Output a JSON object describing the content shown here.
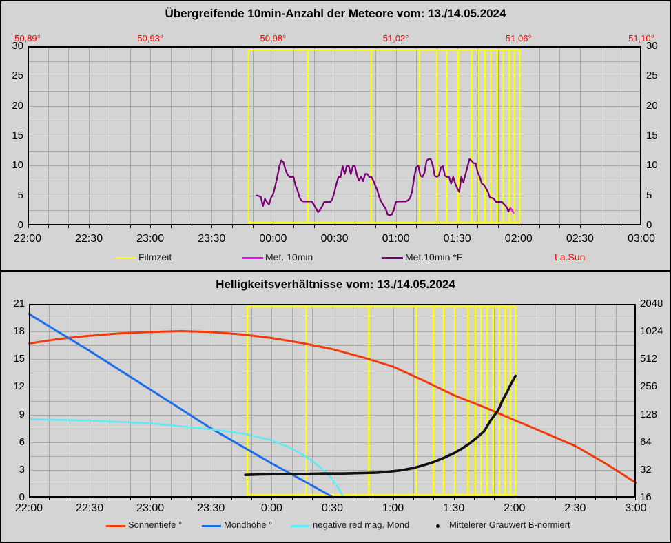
{
  "window": {
    "background": "#d4d4d4",
    "grid_color": "#a8a8a8",
    "frame_color": "#000000"
  },
  "panel1": {
    "title": "Übergreifende 10min-Anzahl der Meteore vom: 13./14.05.2024",
    "sol_long_labels": [
      "50,89°",
      "50,93°",
      "50,98°",
      "51,02°",
      "51,06°",
      "51,10°"
    ],
    "x_tick_labels": [
      "22:00",
      "22:30",
      "23:00",
      "23:30",
      "00:00",
      "00:30",
      "01:00",
      "01:30",
      "02:00",
      "02:30",
      "03:00"
    ],
    "y_tick_labels": [
      "0",
      "5",
      "10",
      "15",
      "20",
      "25",
      "30"
    ],
    "legend": [
      {
        "label": "Filmzeit",
        "color": "#ffff00",
        "marker": "line"
      },
      {
        "label": "Met. 10min",
        "color": "#ff00ff",
        "marker": "line"
      },
      {
        "label": "Met.10min *F",
        "color": "#7a0076",
        "marker": "line"
      },
      {
        "label": "La.Sun",
        "color": "#ff0000",
        "marker": "none"
      }
    ]
  },
  "panel2": {
    "title": "Helligkeitsverhältnisse vom: 13./14.05.2024",
    "x_tick_labels": [
      "22:00",
      "22:30",
      "23:00",
      "23:30",
      "0:00",
      "0:30",
      "1:00",
      "1:30",
      "2:00",
      "2:30",
      "3:00"
    ],
    "y_left_labels": [
      "0",
      "3",
      "6",
      "9",
      "12",
      "15",
      "18",
      "21"
    ],
    "y_right_labels": [
      "16",
      "32",
      "64",
      "128",
      "256",
      "512",
      "1024",
      "2048"
    ],
    "legend": [
      {
        "label": "Sonnentiefe °",
        "color": "#ee3c0c",
        "marker": "line"
      },
      {
        "label": "Mondhöhe °",
        "color": "#1b6deb",
        "marker": "line"
      },
      {
        "label": "negative red mag. Mond",
        "color": "#5fe9f2",
        "marker": "line"
      },
      {
        "label": "Mittelerer Grauwert B-normiert",
        "color": "#111111",
        "marker": "dot"
      }
    ]
  },
  "chart_data": [
    {
      "type": "line",
      "title": "Übergreifende 10min-Anzahl der Meteore vom: 13./14.05.2024",
      "x_axis": {
        "unit": "minutes after 22:00",
        "range": [
          0,
          300
        ],
        "label_interval_min": 30,
        "grid_interval_min": 10
      },
      "y_axis": {
        "range": [
          0,
          30
        ],
        "label_interval": 5,
        "grid_interval": 2.5
      },
      "top_axis": {
        "name": "La.Sun solar longitude",
        "color": "#ff0000",
        "labels": [
          "50,89°",
          "50,93°",
          "50,98°",
          "51,02°",
          "51,06°",
          "51,10°"
        ],
        "positions_min": [
          0,
          60,
          120,
          180,
          240,
          300
        ]
      },
      "film_band": {
        "name": "Filmzeit",
        "color": "#ffff00",
        "boundaries_min": [
          108,
          137,
          168,
          191.5,
          200,
          205,
          210.5,
          217,
          220.5,
          223.5,
          226.5,
          229.5,
          232.5,
          235.5,
          238,
          240.5
        ],
        "y_span": [
          0.45,
          29.4
        ]
      },
      "series": [
        {
          "name": "Met.10min *F",
          "color": "#7a0076",
          "width": 2.3,
          "points": [
            [
              112,
              5
            ],
            [
              113,
              4.9
            ],
            [
              114,
              4.8
            ],
            [
              115,
              3.2
            ],
            [
              116,
              4.4
            ],
            [
              117,
              3.9
            ],
            [
              118,
              3.5
            ],
            [
              119,
              4.6
            ],
            [
              120,
              5.2
            ],
            [
              121,
              6.5
            ],
            [
              122,
              8
            ],
            [
              123,
              9.8
            ],
            [
              124,
              10.9
            ],
            [
              125,
              10.6
            ],
            [
              126,
              9.4
            ],
            [
              127,
              8.5
            ],
            [
              128,
              8.1
            ],
            [
              130,
              8.1
            ],
            [
              131,
              6.6
            ],
            [
              132,
              5.8
            ],
            [
              133,
              4.6
            ],
            [
              134,
              4.1
            ],
            [
              135,
              4
            ],
            [
              139,
              4
            ],
            [
              140,
              3.4
            ],
            [
              141,
              2.8
            ],
            [
              142,
              2.2
            ],
            [
              143,
              2.6
            ],
            [
              144,
              3.2
            ],
            [
              145,
              3.9
            ],
            [
              148,
              3.9
            ],
            [
              149,
              4.4
            ],
            [
              150,
              5.6
            ],
            [
              151,
              7
            ],
            [
              152,
              8.1
            ],
            [
              153,
              8.1
            ],
            [
              154,
              9.9
            ],
            [
              155,
              8.6
            ],
            [
              156,
              9.9
            ],
            [
              157,
              9.9
            ],
            [
              158,
              8.6
            ],
            [
              159,
              9.9
            ],
            [
              160,
              9.9
            ],
            [
              161,
              8.3
            ],
            [
              162,
              7.5
            ],
            [
              163,
              8.1
            ],
            [
              164,
              7.4
            ],
            [
              165,
              8.6
            ],
            [
              166,
              8.6
            ],
            [
              167,
              8.1
            ],
            [
              168,
              8.1
            ],
            [
              169,
              7.5
            ],
            [
              170,
              6.6
            ],
            [
              171,
              5.8
            ],
            [
              172,
              4.6
            ],
            [
              173,
              3.9
            ],
            [
              174,
              3.3
            ],
            [
              175,
              2.8
            ],
            [
              176,
              1.8
            ],
            [
              177,
              1.7
            ],
            [
              178,
              1.8
            ],
            [
              179,
              2.6
            ],
            [
              180,
              3.9
            ],
            [
              181,
              4
            ],
            [
              185,
              4
            ],
            [
              186,
              4.2
            ],
            [
              187,
              4.6
            ],
            [
              188,
              5.8
            ],
            [
              189,
              8.1
            ],
            [
              190,
              9.7
            ],
            [
              191,
              10
            ],
            [
              192,
              8.3
            ],
            [
              193,
              8.1
            ],
            [
              194,
              8.8
            ],
            [
              195,
              10.8
            ],
            [
              196,
              11.1
            ],
            [
              197,
              11.1
            ],
            [
              198,
              10.1
            ],
            [
              199,
              8.3
            ],
            [
              200,
              8.1
            ],
            [
              201,
              8.3
            ],
            [
              202,
              9.7
            ],
            [
              203,
              9.9
            ],
            [
              204,
              8.3
            ],
            [
              205,
              8.1
            ],
            [
              206,
              8.1
            ],
            [
              207,
              7
            ],
            [
              208,
              8.1
            ],
            [
              209,
              7
            ],
            [
              210,
              6.2
            ],
            [
              211,
              5.6
            ],
            [
              212,
              8.1
            ],
            [
              213,
              7.2
            ],
            [
              214,
              8.5
            ],
            [
              215,
              9.8
            ],
            [
              216,
              11.1
            ],
            [
              217,
              10.8
            ],
            [
              218,
              10.4
            ],
            [
              219,
              10.4
            ],
            [
              220,
              8.9
            ],
            [
              221,
              8.1
            ],
            [
              222,
              7
            ],
            [
              223,
              6.8
            ],
            [
              224,
              6.2
            ],
            [
              225,
              5.6
            ],
            [
              226,
              4.6
            ],
            [
              227,
              4.6
            ],
            [
              228,
              4.4
            ],
            [
              229,
              3.9
            ],
            [
              231,
              3.9
            ],
            [
              232,
              3.9
            ],
            [
              233,
              3.5
            ],
            [
              234,
              3.1
            ],
            [
              235,
              2.3
            ],
            [
              236,
              2.9
            ]
          ]
        },
        {
          "name": "Met. 10min",
          "color": "#ff00ff",
          "width": 2.3,
          "points": [
            [
              236,
              2.9
            ],
            [
              237.5,
              2.1
            ]
          ]
        }
      ]
    },
    {
      "type": "line",
      "title": "Helligkeitsverhältnisse vom: 13./14.05.2024",
      "x_axis": {
        "unit": "minutes after 22:00",
        "range": [
          0,
          300
        ],
        "label_interval_min": 30,
        "grid_interval_min": 10
      },
      "y_axis_left": {
        "range": [
          0,
          21
        ],
        "label_interval": 3,
        "grid_interval": 1.5
      },
      "y_axis_right": {
        "scale": "log2",
        "labels": [
          16,
          32,
          64,
          128,
          256,
          512,
          1024,
          2048
        ]
      },
      "film_band": {
        "name": "Filmzeit",
        "color": "#ffff00",
        "boundaries_min": [
          108,
          137,
          168,
          191.5,
          200,
          205,
          210.5,
          217,
          220.5,
          223.5,
          226.5,
          229.5,
          232.5,
          235.5,
          238,
          240.5
        ],
        "y_span": [
          0.3,
          20.7
        ]
      },
      "series": [
        {
          "name": "Sonnentiefe °",
          "color": "#ee3c0c",
          "width": 3,
          "points": [
            [
              0,
              16.7
            ],
            [
              15,
              17.2
            ],
            [
              30,
              17.55
            ],
            [
              45,
              17.8
            ],
            [
              60,
              17.95
            ],
            [
              75,
              18.05
            ],
            [
              90,
              17.95
            ],
            [
              105,
              17.7
            ],
            [
              120,
              17.3
            ],
            [
              135,
              16.75
            ],
            [
              150,
              16.1
            ],
            [
              165,
              15.2
            ],
            [
              180,
              14.2
            ],
            [
              195,
              12.7
            ],
            [
              210,
              11.1
            ],
            [
              225,
              9.8
            ],
            [
              240,
              8.4
            ],
            [
              255,
              7.0
            ],
            [
              270,
              5.6
            ],
            [
              285,
              3.7
            ],
            [
              300,
              1.6
            ]
          ]
        },
        {
          "name": "Mondhöhe °",
          "color": "#1b6deb",
          "width": 3,
          "points": [
            [
              0,
              19.9
            ],
            [
              15,
              17.9
            ],
            [
              30,
              15.9
            ],
            [
              45,
              13.8
            ],
            [
              60,
              11.7
            ],
            [
              75,
              9.6
            ],
            [
              90,
              7.5
            ],
            [
              105,
              5.6
            ],
            [
              120,
              3.7
            ],
            [
              135,
              1.9
            ],
            [
              150.5,
              0
            ]
          ]
        },
        {
          "name": "negative red mag. Mond",
          "color": "#5fe9f2",
          "width": 2.6,
          "points": [
            [
              0,
              8.5
            ],
            [
              30,
              8.35
            ],
            [
              60,
              8.05
            ],
            [
              90,
              7.4
            ],
            [
              107,
              6.9
            ],
            [
              120,
              6.2
            ],
            [
              128,
              5.5
            ],
            [
              135,
              4.7
            ],
            [
              141,
              3.8
            ],
            [
              146,
              2.9
            ],
            [
              150,
              2.0
            ],
            [
              153,
              1.0
            ],
            [
              155.5,
              0
            ]
          ]
        },
        {
          "name": "Mittelerer Grauwert B-normiert",
          "color": "#111111",
          "width": 3.6,
          "points": [
            [
              107,
              2.45
            ],
            [
              115,
              2.5
            ],
            [
              125,
              2.55
            ],
            [
              135,
              2.55
            ],
            [
              145,
              2.6
            ],
            [
              155,
              2.6
            ],
            [
              165,
              2.65
            ],
            [
              172,
              2.7
            ],
            [
              178,
              2.8
            ],
            [
              184,
              2.95
            ],
            [
              190,
              3.2
            ],
            [
              195,
              3.5
            ],
            [
              200,
              3.85
            ],
            [
              205,
              4.3
            ],
            [
              210,
              4.8
            ],
            [
              214,
              5.3
            ],
            [
              218,
              5.9
            ],
            [
              222,
              6.6
            ],
            [
              225,
              7.2
            ],
            [
              228,
              8.3
            ],
            [
              230,
              8.9
            ],
            [
              232,
              9.5
            ],
            [
              234,
              10.5
            ],
            [
              236,
              11.3
            ],
            [
              238,
              12.2
            ],
            [
              240,
              13.0
            ],
            [
              240.5,
              13.2
            ]
          ]
        }
      ]
    }
  ]
}
